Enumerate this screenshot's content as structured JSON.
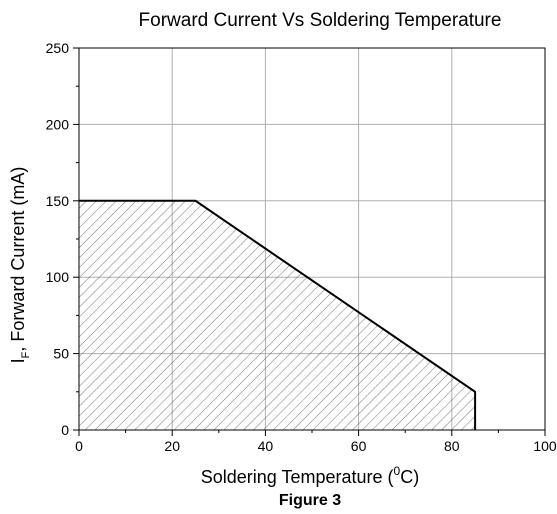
{
  "chart_data": {
    "type": "area",
    "title": "Forward Current Vs Soldering Temperature",
    "xlabel": {
      "prefix": "Soldering Temperature (",
      "superscript": "0",
      "suffix": "C)"
    },
    "ylabel": {
      "main": "I",
      "subscript": "F",
      "suffix": ", Forward Current (mA)"
    },
    "caption": "Figure 3",
    "xlim": [
      0,
      100
    ],
    "ylim": [
      0,
      250
    ],
    "xticks": [
      "0",
      "20",
      "40",
      "60",
      "80",
      "100"
    ],
    "yticks": [
      "0",
      "50",
      "100",
      "150",
      "200",
      "250"
    ],
    "grid": true,
    "fill": "hatched",
    "series": [
      {
        "x": [
          0,
          25,
          85,
          85
        ],
        "y": [
          150,
          150,
          25,
          0
        ]
      }
    ]
  }
}
